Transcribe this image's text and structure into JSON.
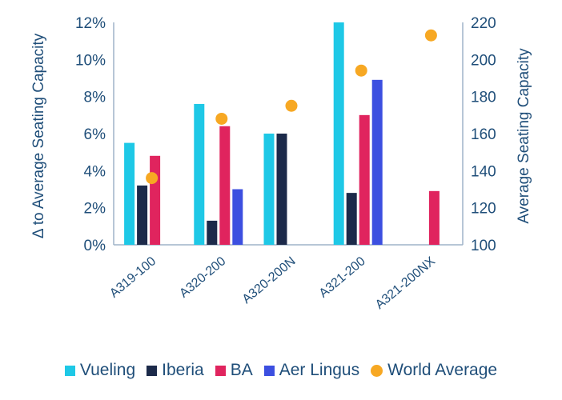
{
  "chart_data": {
    "type": "bar",
    "categories": [
      "A319-100",
      "A320-200",
      "A320-200N",
      "A321-200",
      "A321-200NX"
    ],
    "ylabel": "Δ to Average Seating Capacity",
    "y2label": "Average Seating Capacity",
    "ylim": [
      0,
      12
    ],
    "y2lim": [
      100,
      220
    ],
    "y_ticks": [
      "0%",
      "2%",
      "4%",
      "6%",
      "8%",
      "10%",
      "12%"
    ],
    "y2_ticks": [
      "100",
      "120",
      "140",
      "160",
      "180",
      "200",
      "220"
    ],
    "series": [
      {
        "name": "Vueling",
        "color": "#1ec8e6",
        "values": [
          5.5,
          7.6,
          6.0,
          12.0,
          null
        ]
      },
      {
        "name": "Iberia",
        "color": "#1c2a4a",
        "values": [
          3.2,
          1.3,
          6.0,
          2.8,
          null
        ]
      },
      {
        "name": "BA",
        "color": "#e0245e",
        "values": [
          4.8,
          6.4,
          null,
          7.0,
          2.9
        ]
      },
      {
        "name": "Aer Lingus",
        "color": "#3c4fe0",
        "values": [
          null,
          3.0,
          null,
          8.9,
          null
        ]
      }
    ],
    "scatter_series": {
      "name": "World Average",
      "color": "#f7a823",
      "axis": "right",
      "values": [
        136,
        168,
        175,
        194,
        213
      ]
    },
    "legend_position": "bottom",
    "grid": false
  }
}
